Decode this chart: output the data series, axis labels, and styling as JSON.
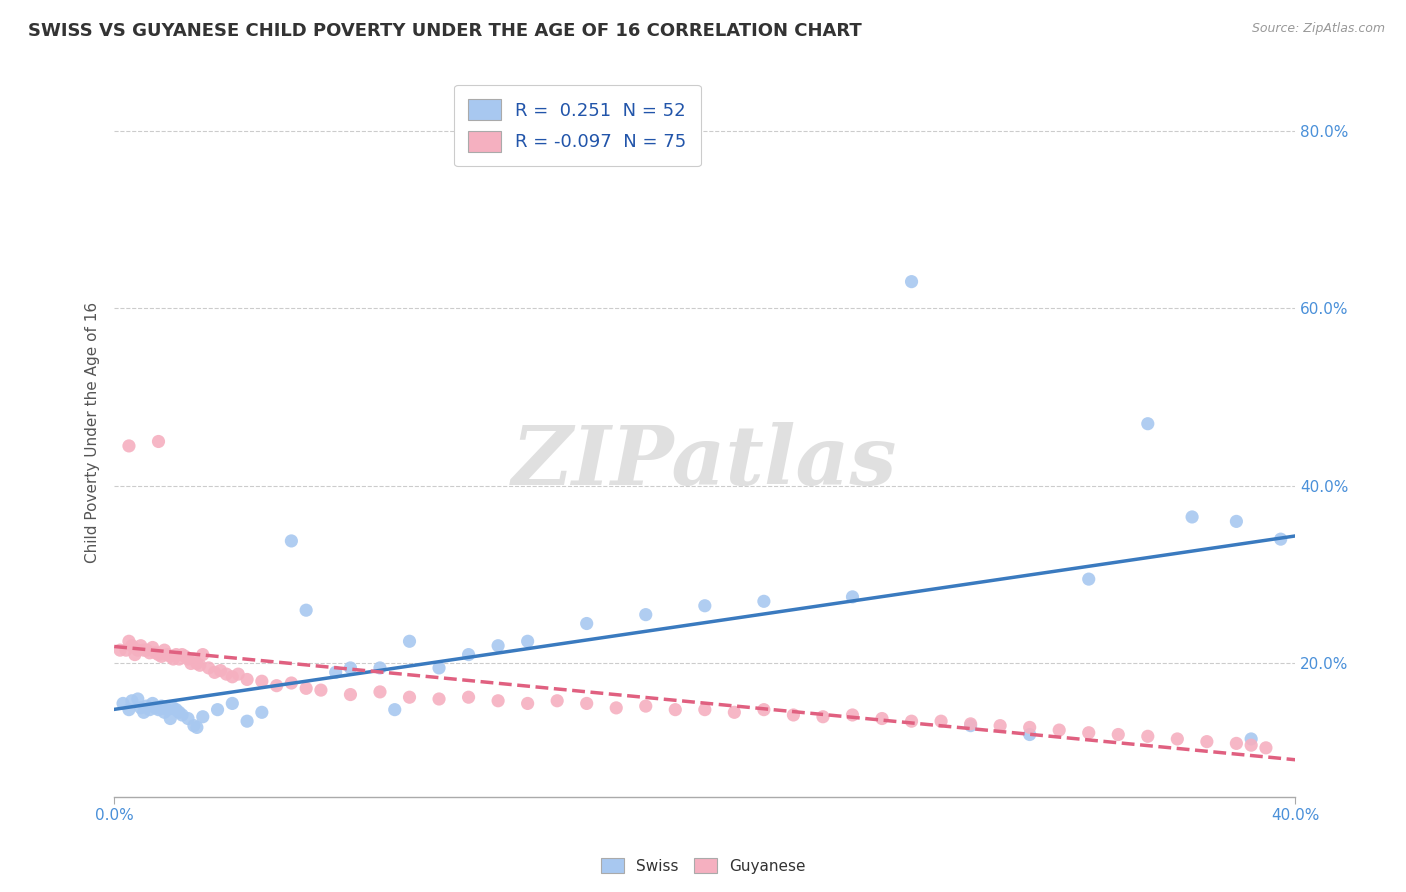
{
  "title": "SWISS VS GUYANESE CHILD POVERTY UNDER THE AGE OF 16 CORRELATION CHART",
  "source": "Source: ZipAtlas.com",
  "ylabel": "Child Poverty Under the Age of 16",
  "xlim": [
    0.0,
    0.4
  ],
  "ylim": [
    0.05,
    0.87
  ],
  "yticks": [
    0.2,
    0.4,
    0.6,
    0.8
  ],
  "ytick_labels": [
    "20.0%",
    "40.0%",
    "60.0%",
    "80.0%"
  ],
  "legend_swiss_R": " 0.251",
  "legend_swiss_N": "52",
  "legend_guyanese_R": "-0.097",
  "legend_guyanese_N": "75",
  "swiss_color": "#a8c8f0",
  "guyanese_color": "#f5b0c0",
  "swiss_line_color": "#3a7abf",
  "guyanese_line_color": "#e06080",
  "background_color": "#ffffff",
  "grid_color": "#cccccc",
  "watermark": "ZIPatlas",
  "swiss_x": [
    0.003,
    0.005,
    0.006,
    0.008,
    0.009,
    0.01,
    0.011,
    0.012,
    0.013,
    0.014,
    0.015,
    0.016,
    0.017,
    0.018,
    0.019,
    0.02,
    0.021,
    0.022,
    0.023,
    0.025,
    0.027,
    0.028,
    0.03,
    0.035,
    0.04,
    0.045,
    0.05,
    0.06,
    0.065,
    0.075,
    0.08,
    0.09,
    0.095,
    0.1,
    0.11,
    0.12,
    0.13,
    0.14,
    0.16,
    0.18,
    0.2,
    0.22,
    0.25,
    0.27,
    0.29,
    0.31,
    0.33,
    0.35,
    0.365,
    0.38,
    0.385,
    0.395
  ],
  "swiss_y": [
    0.155,
    0.148,
    0.158,
    0.16,
    0.15,
    0.145,
    0.152,
    0.148,
    0.155,
    0.15,
    0.148,
    0.152,
    0.145,
    0.148,
    0.138,
    0.15,
    0.148,
    0.145,
    0.142,
    0.138,
    0.13,
    0.128,
    0.14,
    0.148,
    0.155,
    0.135,
    0.145,
    0.338,
    0.26,
    0.19,
    0.195,
    0.195,
    0.148,
    0.225,
    0.195,
    0.21,
    0.22,
    0.225,
    0.245,
    0.255,
    0.265,
    0.27,
    0.275,
    0.63,
    0.13,
    0.12,
    0.295,
    0.47,
    0.365,
    0.36,
    0.115,
    0.34
  ],
  "guyanese_x": [
    0.002,
    0.004,
    0.005,
    0.006,
    0.007,
    0.008,
    0.009,
    0.01,
    0.011,
    0.012,
    0.013,
    0.014,
    0.015,
    0.016,
    0.017,
    0.018,
    0.019,
    0.02,
    0.021,
    0.022,
    0.023,
    0.024,
    0.025,
    0.026,
    0.027,
    0.028,
    0.029,
    0.03,
    0.032,
    0.034,
    0.036,
    0.038,
    0.04,
    0.042,
    0.045,
    0.05,
    0.055,
    0.06,
    0.065,
    0.07,
    0.08,
    0.09,
    0.1,
    0.11,
    0.12,
    0.13,
    0.14,
    0.15,
    0.16,
    0.17,
    0.18,
    0.19,
    0.2,
    0.21,
    0.22,
    0.23,
    0.24,
    0.25,
    0.26,
    0.27,
    0.28,
    0.29,
    0.3,
    0.31,
    0.32,
    0.33,
    0.34,
    0.35,
    0.36,
    0.37,
    0.38,
    0.385,
    0.39,
    0.005,
    0.015
  ],
  "guyanese_y": [
    0.215,
    0.215,
    0.225,
    0.22,
    0.21,
    0.215,
    0.22,
    0.215,
    0.215,
    0.212,
    0.218,
    0.212,
    0.21,
    0.208,
    0.215,
    0.21,
    0.208,
    0.205,
    0.21,
    0.205,
    0.21,
    0.208,
    0.205,
    0.2,
    0.205,
    0.2,
    0.198,
    0.21,
    0.195,
    0.19,
    0.192,
    0.188,
    0.185,
    0.188,
    0.182,
    0.18,
    0.175,
    0.178,
    0.172,
    0.17,
    0.165,
    0.168,
    0.162,
    0.16,
    0.162,
    0.158,
    0.155,
    0.158,
    0.155,
    0.15,
    0.152,
    0.148,
    0.148,
    0.145,
    0.148,
    0.142,
    0.14,
    0.142,
    0.138,
    0.135,
    0.135,
    0.132,
    0.13,
    0.128,
    0.125,
    0.122,
    0.12,
    0.118,
    0.115,
    0.112,
    0.11,
    0.108,
    0.105,
    0.445,
    0.45
  ]
}
